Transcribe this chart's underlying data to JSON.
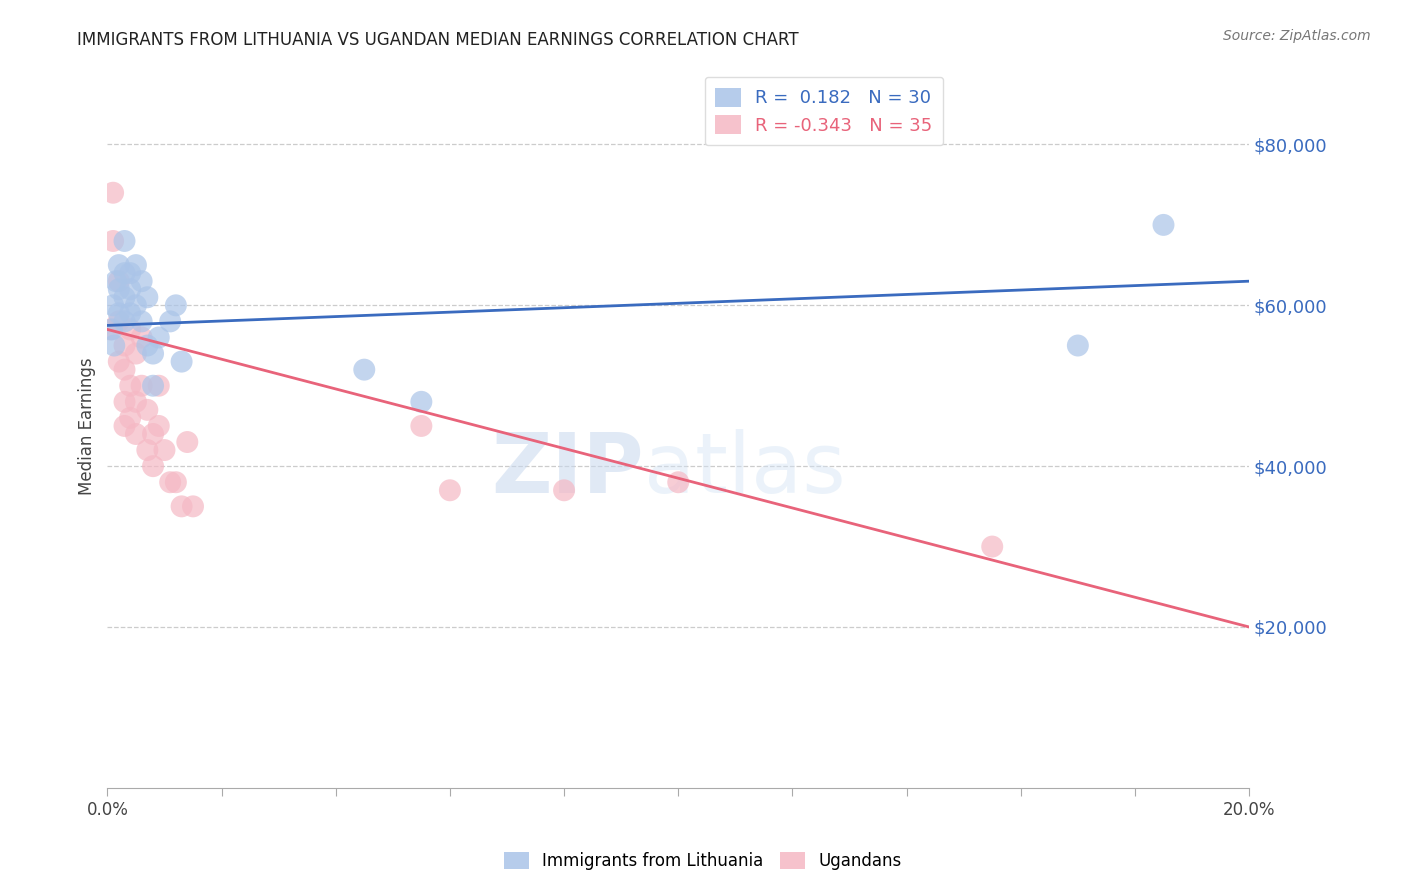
{
  "title": "IMMIGRANTS FROM LITHUANIA VS UGANDAN MEDIAN EARNINGS CORRELATION CHART",
  "source": "Source: ZipAtlas.com",
  "ylabel": "Median Earnings",
  "right_yticks": [
    20000,
    40000,
    60000,
    80000
  ],
  "right_yticklabels": [
    "$20,000",
    "$40,000",
    "$60,000",
    "$80,000"
  ],
  "watermark_zip": "ZIP",
  "watermark_atlas": "atlas",
  "legend_blue_R": "0.182",
  "legend_blue_N": "30",
  "legend_pink_R": "-0.343",
  "legend_pink_N": "35",
  "blue_color": "#aac4e8",
  "pink_color": "#f5b8c4",
  "blue_line_color": "#3a6bbf",
  "pink_line_color": "#e8637a",
  "xlim": [
    0.0,
    0.2
  ],
  "ylim": [
    0,
    90000
  ],
  "blue_scatter_x": [
    0.0008,
    0.001,
    0.0012,
    0.0015,
    0.002,
    0.002,
    0.002,
    0.003,
    0.003,
    0.003,
    0.003,
    0.004,
    0.004,
    0.004,
    0.005,
    0.005,
    0.006,
    0.006,
    0.007,
    0.007,
    0.008,
    0.008,
    0.009,
    0.011,
    0.012,
    0.013,
    0.045,
    0.055,
    0.17,
    0.185
  ],
  "blue_scatter_y": [
    57000,
    60000,
    55000,
    63000,
    65000,
    62000,
    59000,
    68000,
    64000,
    61000,
    58000,
    64000,
    62000,
    59000,
    65000,
    60000,
    63000,
    58000,
    61000,
    55000,
    54000,
    50000,
    56000,
    58000,
    60000,
    53000,
    52000,
    48000,
    55000,
    70000
  ],
  "pink_scatter_x": [
    0.0005,
    0.001,
    0.001,
    0.002,
    0.002,
    0.002,
    0.003,
    0.003,
    0.003,
    0.003,
    0.004,
    0.004,
    0.004,
    0.005,
    0.005,
    0.005,
    0.006,
    0.006,
    0.007,
    0.007,
    0.008,
    0.008,
    0.009,
    0.009,
    0.01,
    0.011,
    0.012,
    0.013,
    0.014,
    0.015,
    0.055,
    0.08,
    0.1,
    0.155,
    0.06
  ],
  "pink_scatter_y": [
    57000,
    74000,
    68000,
    63000,
    58000,
    53000,
    55000,
    52000,
    48000,
    45000,
    57000,
    50000,
    46000,
    54000,
    48000,
    44000,
    56000,
    50000,
    47000,
    42000,
    44000,
    40000,
    50000,
    45000,
    42000,
    38000,
    38000,
    35000,
    43000,
    35000,
    45000,
    37000,
    38000,
    30000,
    37000
  ],
  "blue_line_x0": 0.0,
  "blue_line_y0": 57500,
  "blue_line_x1": 0.2,
  "blue_line_y1": 63000,
  "pink_line_x0": 0.0,
  "pink_line_y0": 57000,
  "pink_line_x1": 0.2,
  "pink_line_y1": 20000
}
